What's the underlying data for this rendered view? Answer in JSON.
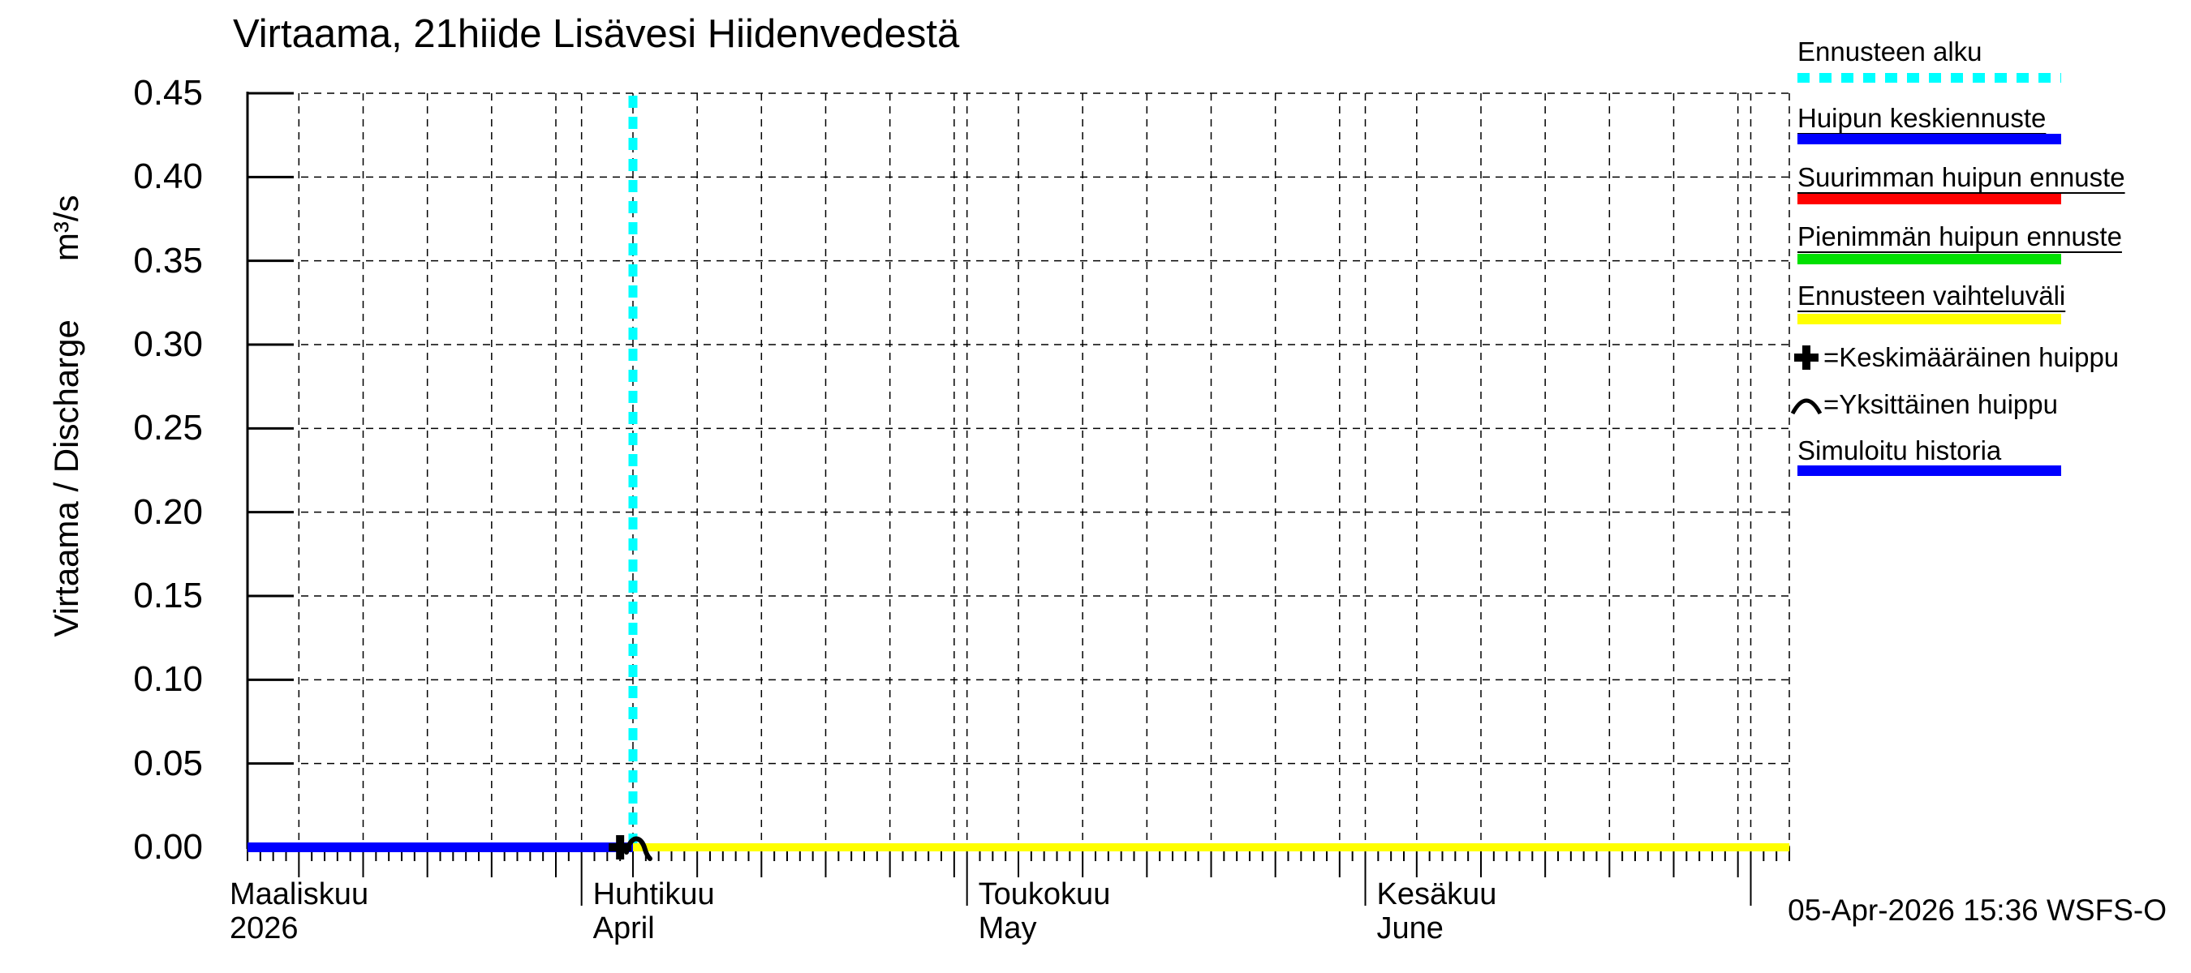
{
  "footer": {
    "timestamp": "05-Apr-2026 15:36 WSFS-O"
  },
  "colors": {
    "background": "#FFFFFF",
    "axis": "#000000",
    "grid": "#000000",
    "forecast_start": "#00FFFF",
    "simulated_history": "#0000FF",
    "peak_mean_forecast": "#0000FF",
    "max_peak_forecast": "#FF0000",
    "min_peak_forecast": "#00E000",
    "forecast_range": "#FFFF00"
  },
  "chart_data": {
    "type": "line",
    "title": "Virtaama, 21hiide Lisävesi Hiidenvedestä",
    "ylabel": "Virtaama / Discharge",
    "y_unit": "m³/s",
    "ylim": [
      0,
      0.45
    ],
    "y_tick_labels": [
      "0.00",
      "0.05",
      "0.10",
      "0.15",
      "0.20",
      "0.25",
      "0.30",
      "0.35",
      "0.40",
      "0.45"
    ],
    "grid": "dashed",
    "x_axis": {
      "start_date": "2026-03-06",
      "end_date": "2026-07-04",
      "minor_tick_unit": "day",
      "gridline_on_days_of_month": [
        1,
        5,
        10,
        15,
        20,
        25,
        30
      ],
      "month_labels": [
        {
          "fi": "Maaliskuu",
          "sub": "2026",
          "date": "2026-03-01"
        },
        {
          "fi": "Huhtikuu",
          "sub": "April",
          "date": "2026-04-01"
        },
        {
          "fi": "Toukokuu",
          "sub": "May",
          "date": "2026-05-01"
        },
        {
          "fi": "Kesäkuu",
          "sub": "June",
          "date": "2026-06-01"
        }
      ]
    },
    "forecast_start_date": "2026-04-05",
    "series": [
      {
        "name": "Simuloitu historia",
        "color": "#0000FF",
        "start": "2026-03-06",
        "end": "2026-04-05",
        "value": 0.0
      },
      {
        "name": "Huipun keskiennuste",
        "color": "#0000FF",
        "start": "2026-04-05",
        "end": "2026-07-04",
        "value": 0.0
      },
      {
        "name": "Suurimman huipun ennuste",
        "color": "#FF0000",
        "start": "2026-04-05",
        "end": "2026-07-04",
        "value": 0.0,
        "hidden_behind_mean": true
      },
      {
        "name": "Pienimmän huipun ennuste",
        "color": "#00E000",
        "start": "2026-04-05",
        "end": "2026-07-04",
        "value": 0.0,
        "hidden_behind_mean": true
      },
      {
        "name": "Ennusteen vaihteluväli",
        "color": "#FFFF00",
        "start": "2026-04-05",
        "end": "2026-07-04",
        "value": 0.0,
        "hidden_behind_mean": true
      }
    ],
    "markers": [
      {
        "type": "plus",
        "name": "Keskimääräinen huippu",
        "date": "2026-04-04",
        "value": 0.0
      },
      {
        "type": "arc",
        "name": "Yksittäinen huippu",
        "date": "2026-04-05",
        "value": 0.0
      }
    ]
  },
  "legend": {
    "items": [
      {
        "name": "forecast-start",
        "label": "Ennusteen alku",
        "swatch": "dashed",
        "color": "#00FFFF",
        "underline": false
      },
      {
        "name": "peak-mean-forecast",
        "label": "Huipun keskiennuste",
        "swatch": "line",
        "color": "#0000FF",
        "underline": true
      },
      {
        "name": "max-peak-forecast",
        "label": "Suurimman huipun ennuste",
        "swatch": "line",
        "color": "#FF0000",
        "underline": true
      },
      {
        "name": "min-peak-forecast",
        "label": "Pienimmän huipun ennuste",
        "swatch": "line",
        "color": "#00E000",
        "underline": true
      },
      {
        "name": "forecast-range",
        "label": "Ennusteen vaihteluväli",
        "swatch": "line",
        "color": "#FFFF00",
        "underline": true
      },
      {
        "name": "average-peak-marker",
        "label": "=Keskimääräinen huippu",
        "swatch": "plus",
        "color": "#000000",
        "underline": false
      },
      {
        "name": "single-peak-marker",
        "label": "=Yksittäinen huippu",
        "swatch": "arc",
        "color": "#000000",
        "underline": false
      },
      {
        "name": "simulated-history",
        "label": "Simuloitu historia",
        "swatch": "line",
        "color": "#0000FF",
        "underline": true
      }
    ]
  }
}
